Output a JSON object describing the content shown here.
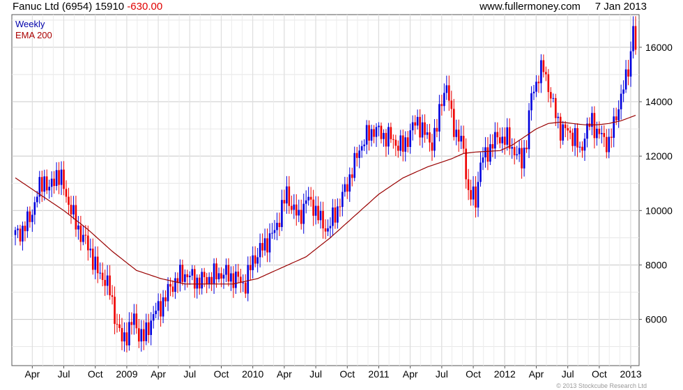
{
  "header": {
    "company": "Fanuc Ltd (6954)",
    "price": "15910",
    "change": "-630.00",
    "site": "www.fullermoney.com",
    "date": "7 Jan 2013"
  },
  "footer": {
    "copyright": "© 2013 Stockcube Research Ltd"
  },
  "colors": {
    "up": "#0000dd",
    "down": "#ee0000",
    "ema": "#990000",
    "grid": "#d4d4d4",
    "frame": "#555555",
    "legend_weekly": "#0000aa",
    "legend_ema": "#aa0000"
  },
  "chart_data": {
    "type": "candlestick",
    "frequency": "weekly",
    "legend": [
      "Weekly",
      "EMA 200"
    ],
    "x_ticks": [
      "Apr",
      "Jul",
      "Oct",
      "2009",
      "Apr",
      "Jul",
      "Oct",
      "2010",
      "Apr",
      "Jul",
      "Oct",
      "2011",
      "Apr",
      "Jul",
      "Oct",
      "2012",
      "Apr",
      "Jul",
      "Oct",
      "2013"
    ],
    "y_ticks": [
      6000,
      8000,
      10000,
      12000,
      14000,
      16000
    ],
    "ylim": [
      4300,
      17200
    ],
    "price_points": [
      [
        0,
        9100
      ],
      [
        3,
        9300
      ],
      [
        6,
        9700
      ],
      [
        9,
        10600
      ],
      [
        12,
        11200
      ],
      [
        14,
        10700
      ],
      [
        17,
        11400
      ],
      [
        19,
        11100
      ],
      [
        22,
        10300
      ],
      [
        25,
        9500
      ],
      [
        28,
        9000
      ],
      [
        31,
        8500
      ],
      [
        34,
        7700
      ],
      [
        37,
        7500
      ],
      [
        39,
        7000
      ],
      [
        42,
        5800
      ],
      [
        44,
        5200
      ],
      [
        46,
        5500
      ],
      [
        49,
        6000
      ],
      [
        51,
        5500
      ],
      [
        53,
        5300
      ],
      [
        56,
        6000
      ],
      [
        59,
        6400
      ],
      [
        62,
        6800
      ],
      [
        64,
        7200
      ],
      [
        67,
        7500
      ],
      [
        70,
        7700
      ],
      [
        73,
        7500
      ],
      [
        76,
        7400
      ],
      [
        79,
        7500
      ],
      [
        82,
        7600
      ],
      [
        85,
        7700
      ],
      [
        88,
        7600
      ],
      [
        91,
        7500
      ],
      [
        93,
        7400
      ],
      [
        95,
        7300
      ],
      [
        98,
        8200
      ],
      [
        101,
        8500
      ],
      [
        104,
        8900
      ],
      [
        107,
        9200
      ],
      [
        110,
        10100
      ],
      [
        112,
        10600
      ],
      [
        114,
        10200
      ],
      [
        117,
        9700
      ],
      [
        120,
        10400
      ],
      [
        123,
        10200
      ],
      [
        126,
        9600
      ],
      [
        129,
        9300
      ],
      [
        132,
        9900
      ],
      [
        135,
        10500
      ],
      [
        137,
        11000
      ],
      [
        140,
        11700
      ],
      [
        142,
        12300
      ],
      [
        145,
        12700
      ],
      [
        148,
        13000
      ],
      [
        151,
        12800
      ],
      [
        154,
        12700
      ],
      [
        157,
        12500
      ],
      [
        160,
        12300
      ],
      [
        163,
        12900
      ],
      [
        166,
        13300
      ],
      [
        169,
        12800
      ],
      [
        172,
        12500
      ],
      [
        174,
        13000
      ],
      [
        176,
        14200
      ],
      [
        178,
        14500
      ],
      [
        180,
        13500
      ],
      [
        182,
        12800
      ],
      [
        185,
        12300
      ],
      [
        187,
        10600
      ],
      [
        190,
        10400
      ],
      [
        192,
        11800
      ],
      [
        194,
        12000
      ],
      [
        197,
        12500
      ],
      [
        200,
        12700
      ],
      [
        203,
        12600
      ],
      [
        206,
        12200
      ],
      [
        209,
        11800
      ],
      [
        211,
        12600
      ],
      [
        213,
        14200
      ],
      [
        216,
        15000
      ],
      [
        218,
        15200
      ],
      [
        220,
        14600
      ],
      [
        222,
        13800
      ],
      [
        225,
        13000
      ],
      [
        228,
        12900
      ],
      [
        231,
        12700
      ],
      [
        233,
        12100
      ],
      [
        235,
        12800
      ],
      [
        238,
        13300
      ],
      [
        240,
        12900
      ],
      [
        243,
        12600
      ],
      [
        245,
        12500
      ],
      [
        247,
        13100
      ],
      [
        249,
        13900
      ],
      [
        252,
        14800
      ],
      [
        254,
        15800
      ],
      [
        255,
        16900
      ],
      [
        256,
        15910
      ]
    ],
    "ema_points": [
      [
        0,
        11200
      ],
      [
        10,
        10600
      ],
      [
        20,
        10000
      ],
      [
        30,
        9300
      ],
      [
        40,
        8500
      ],
      [
        50,
        7800
      ],
      [
        60,
        7500
      ],
      [
        70,
        7300
      ],
      [
        80,
        7300
      ],
      [
        90,
        7300
      ],
      [
        100,
        7500
      ],
      [
        110,
        7900
      ],
      [
        120,
        8300
      ],
      [
        130,
        9000
      ],
      [
        140,
        9800
      ],
      [
        150,
        10600
      ],
      [
        160,
        11200
      ],
      [
        170,
        11600
      ],
      [
        180,
        11900
      ],
      [
        185,
        12100
      ],
      [
        190,
        12150
      ],
      [
        200,
        12200
      ],
      [
        205,
        12400
      ],
      [
        210,
        12700
      ],
      [
        215,
        13000
      ],
      [
        220,
        13200
      ],
      [
        225,
        13250
      ],
      [
        230,
        13200
      ],
      [
        235,
        13150
      ],
      [
        240,
        13150
      ],
      [
        245,
        13200
      ],
      [
        250,
        13300
      ],
      [
        256,
        13500
      ]
    ]
  }
}
